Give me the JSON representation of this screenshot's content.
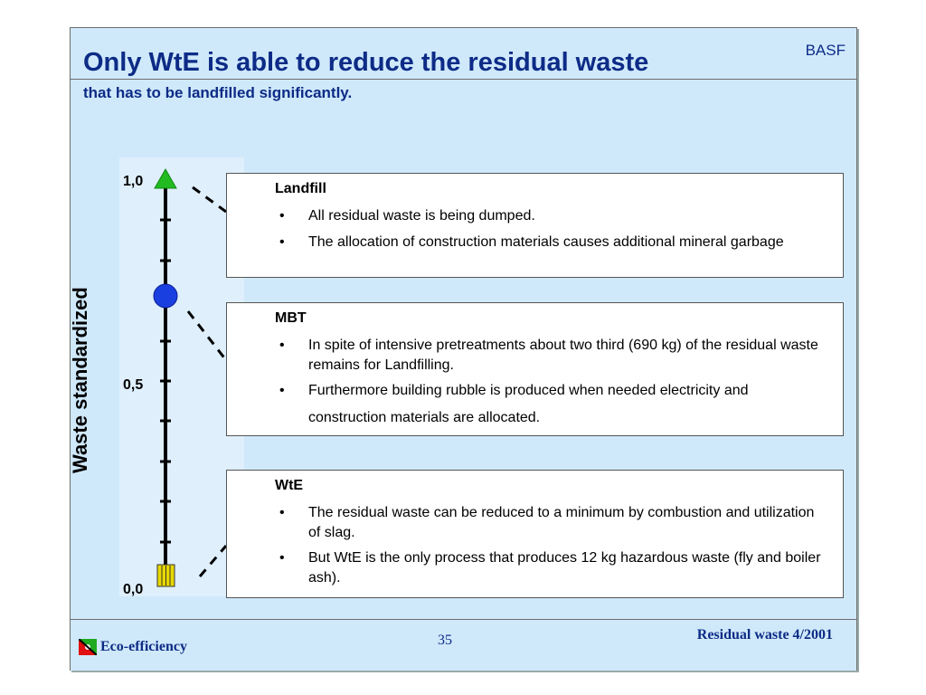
{
  "header": {
    "title": "Only WtE is able to reduce the residual waste",
    "brand": "BASF",
    "subtitle": "that has to be landfilled significantly."
  },
  "scale": {
    "axis_label": "Waste standardized",
    "ticks": [
      "1,0",
      "0,5",
      "0,0"
    ],
    "markers": [
      {
        "name": "Landfill",
        "value": 1.0,
        "shape": "triangle",
        "color": "#22bb22"
      },
      {
        "name": "MBT",
        "value": 0.69,
        "shape": "circle",
        "color": "#1a3fe0"
      },
      {
        "name": "WtE",
        "value": 0.0,
        "shape": "square",
        "color": "#e8d800"
      }
    ]
  },
  "boxes": {
    "landfill": {
      "heading": "Landfill",
      "bullets": [
        "All residual waste is being dumped.",
        "The allocation of construction materials causes additional mineral garbage"
      ]
    },
    "mbt": {
      "heading": "MBT",
      "bullets": [
        "In spite of intensive pretreatments about two third (690 kg) of the residual waste remains for Landfilling.",
        "Furthermore building rubble is produced when needed electricity and construction materials are allocated."
      ]
    },
    "wte": {
      "heading": "WtE",
      "bullets": [
        "The residual waste can be reduced to a minimum by combustion and utilization of slag.",
        "But WtE is the only process that produces 12 kg hazardous waste (fly and boiler ash)."
      ]
    }
  },
  "footer": {
    "left": "Eco-efficiency",
    "page": "35",
    "right": "Residual waste 4/2001"
  }
}
